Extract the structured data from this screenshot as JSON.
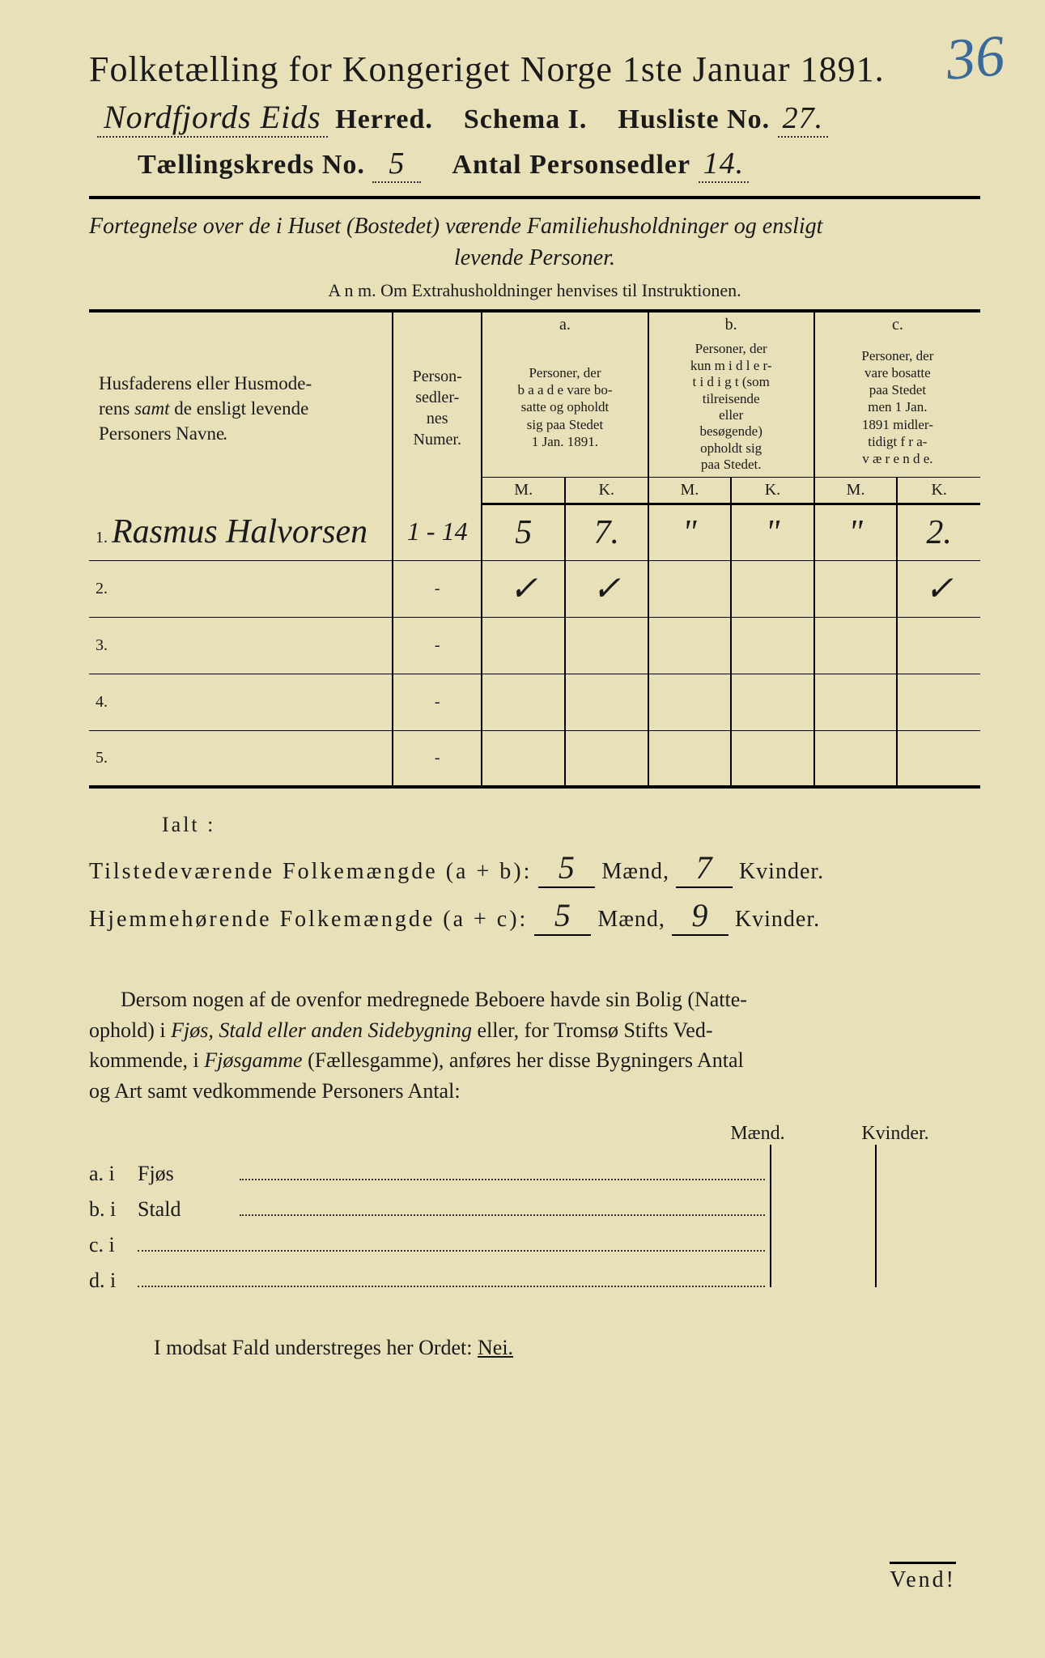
{
  "corner_number": "36",
  "title": "Folketælling for Kongeriget Norge 1ste Januar 1891.",
  "herred_hw": "Nordfjords Eids",
  "herred_label": "Herred.",
  "schema_label": "Schema I.",
  "husliste_label": "Husliste No.",
  "husliste_no": "27.",
  "kreds_label": "Tællingskreds No.",
  "kreds_no": "5",
  "personsedler_label": "Antal Personsedler",
  "personsedler_no": "14.",
  "subtitle_l1": "Fortegnelse over de i Huset (Bostedet) værende Familiehusholdninger og ensligt",
  "subtitle_l2": "levende Personer.",
  "anm": "A n m.  Om Extrahusholdninger henvises til Instruktionen.",
  "headers": {
    "name": "Husfaderens eller Husmoderens samt de ensligt levende Personers Navne.",
    "num": "Personsedlernes Numer.",
    "a_label": "a.",
    "a_text": "Personer, der baade vare bosatte og opholdt sig paa Stedet 1 Jan. 1891.",
    "b_label": "b.",
    "b_text": "Personer, der kun midlertidigt (som tilreisende eller besøgende) opholdt sig paa Stedet.",
    "c_label": "c.",
    "c_text": "Personer, der vare bosatte paa Stedet men 1 Jan. 1891 midlertidigt fraværende.",
    "M": "M.",
    "K": "K."
  },
  "rows": [
    {
      "n": "1.",
      "name": "Rasmus Halvorsen",
      "num": "1 - 14",
      "aM": "5",
      "aK": "7.",
      "bM": "\"",
      "bK": "\"",
      "cM": "\"",
      "cK": "2."
    },
    {
      "n": "2.",
      "name": "",
      "num": "-",
      "aM": "✓",
      "aK": "✓",
      "bM": "",
      "bK": "",
      "cM": "",
      "cK": "✓"
    },
    {
      "n": "3.",
      "name": "",
      "num": "-",
      "aM": "",
      "aK": "",
      "bM": "",
      "bK": "",
      "cM": "",
      "cK": ""
    },
    {
      "n": "4.",
      "name": "",
      "num": "-",
      "aM": "",
      "aK": "",
      "bM": "",
      "bK": "",
      "cM": "",
      "cK": ""
    },
    {
      "n": "5.",
      "name": "",
      "num": "-",
      "aM": "",
      "aK": "",
      "bM": "",
      "bK": "",
      "cM": "",
      "cK": ""
    }
  ],
  "ialt": "Ialt :",
  "totals": {
    "tilstede_label": "Tilstedeværende Folkemængde (a + b):",
    "tilstede_m": "5",
    "tilstede_k": "7",
    "hjemme_label": "Hjemmehørende Folkemængde (a + c):",
    "hjemme_m": "5",
    "hjemme_k": "9",
    "maend": "Mænd,",
    "kvinder": "Kvinder."
  },
  "para": "Dersom nogen af de ovenfor medregnede Beboere havde sin Bolig (Natteophold) i Fjøs, Stald eller anden Sidebygning eller, for Tromsø Stifts Vedkommende, i Fjøsgamme (Fællesgamme), anføres her disse Bygningers Antal og Art samt vedkommende Personers Antal:",
  "mk": {
    "m": "Mænd.",
    "k": "Kvinder."
  },
  "buildings": [
    {
      "lead": "a.  i",
      "loc": "Fjøs"
    },
    {
      "lead": "b.  i",
      "loc": "Stald"
    },
    {
      "lead": "c.  i",
      "loc": ""
    },
    {
      "lead": "d.  i",
      "loc": ""
    }
  ],
  "modsat": "I modsat Fald understreges her Ordet: ",
  "nei": "Nei.",
  "vend": "Vend!",
  "colors": {
    "paper": "#e8e0b8",
    "ink": "#1a1a1a",
    "pencil_blue": "#3a6a9a"
  }
}
